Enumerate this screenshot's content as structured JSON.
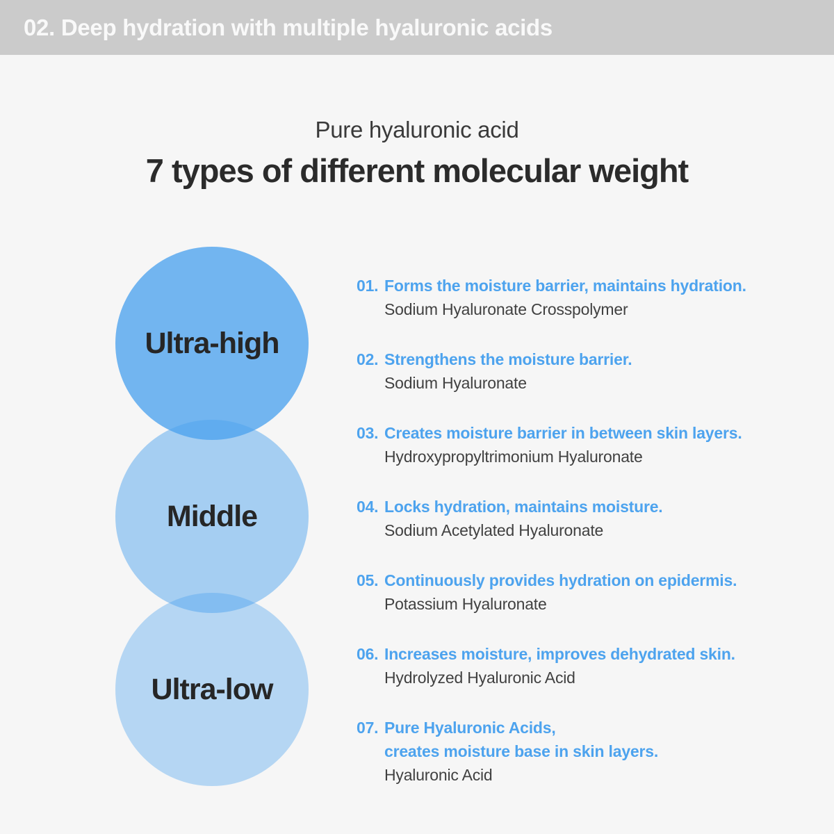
{
  "banner": {
    "label": "02. Deep hydration with multiple hyaluronic acids"
  },
  "title": {
    "subtitle": "Pure hyaluronic acid",
    "heading": "7 types of different molecular weight"
  },
  "circles": [
    {
      "label": "Ultra-high"
    },
    {
      "label": "Middle"
    },
    {
      "label": "Ultra-low"
    }
  ],
  "items": [
    {
      "num": "01.",
      "desc": "Forms the moisture barrier, maintains hydration.",
      "desc2": "",
      "compound": "Sodium Hyaluronate Crosspolymer"
    },
    {
      "num": "02.",
      "desc": "Strengthens the moisture barrier.",
      "desc2": "",
      "compound": "Sodium Hyaluronate"
    },
    {
      "num": "03.",
      "desc": "Creates moisture barrier in between skin layers.",
      "desc2": "",
      "compound": "Hydroxypropyltrimonium Hyaluronate"
    },
    {
      "num": "04.",
      "desc": "Locks hydration, maintains moisture.",
      "desc2": "",
      "compound": "Sodium Acetylated Hyaluronate"
    },
    {
      "num": "05.",
      "desc": "Continuously provides hydration on epidermis.",
      "desc2": "",
      "compound": "Potassium Hyaluronate"
    },
    {
      "num": "06.",
      "desc": "Increases moisture, improves dehydrated skin.",
      "desc2": "",
      "compound": "Hydrolyzed Hyaluronic Acid"
    },
    {
      "num": "07.",
      "desc": "Pure Hyaluronic Acids,",
      "desc2": "creates moisture base in skin layers.",
      "compound": "Hyaluronic Acid"
    }
  ],
  "colors": {
    "accent_blue": "#4da3ee",
    "circle_blue": "#4da3ee",
    "banner_bg": "#cbcbcb",
    "page_bg": "#f6f6f6",
    "text_dark": "#2b2b2b"
  }
}
